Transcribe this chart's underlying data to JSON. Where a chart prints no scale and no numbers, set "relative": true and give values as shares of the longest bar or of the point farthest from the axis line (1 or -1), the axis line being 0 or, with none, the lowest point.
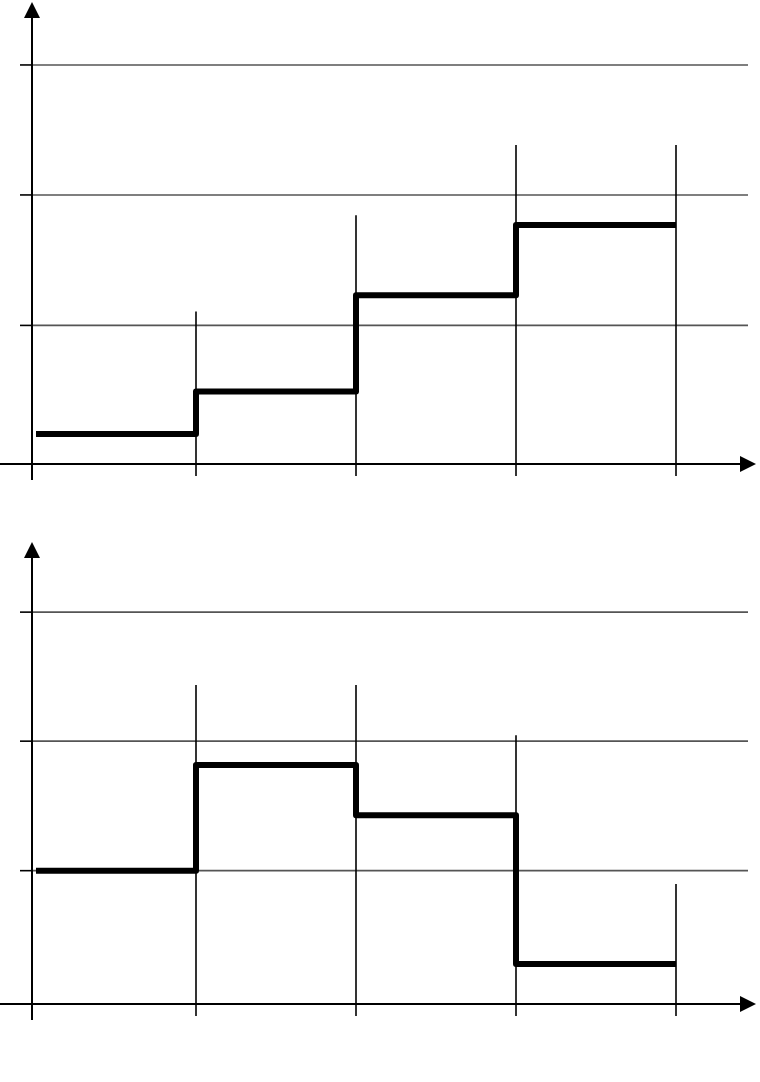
{
  "chart_data": [
    {
      "type": "step",
      "relative": true,
      "grid": true,
      "categories": [
        null,
        null,
        null,
        null,
        null
      ],
      "series": [
        {
          "color": "#000000",
          "values": [
            0.126,
            0.303,
            0.706,
            1,
            1
          ]
        }
      ],
      "ref_lines": [
        {
          "axis": "y",
          "value": 0.58,
          "color": "#555555"
        },
        {
          "axis": "y",
          "value": 1.126,
          "color": "#555555"
        },
        {
          "axis": "y",
          "value": 1.67,
          "color": "#555555"
        }
      ]
    },
    {
      "type": "step",
      "relative": true,
      "grid": true,
      "categories": [
        null,
        null,
        null,
        null,
        null
      ],
      "series": [
        {
          "color": "#000000",
          "values": [
            0.558,
            1,
            0.79,
            0.167,
            0.167
          ]
        }
      ],
      "ref_lines": [
        {
          "axis": "y",
          "value": 0.558,
          "color": "#555555"
        },
        {
          "axis": "y",
          "value": 1.1,
          "color": "#555555"
        },
        {
          "axis": "y",
          "value": 1.64,
          "color": "#555555"
        }
      ]
    }
  ]
}
